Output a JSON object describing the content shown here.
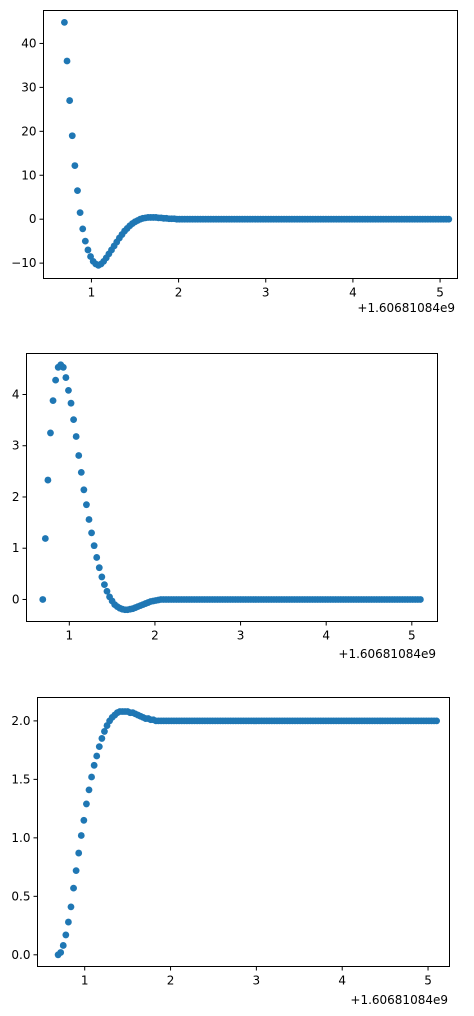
{
  "chart_data": [
    {
      "type": "scatter",
      "color": "#1f77b4",
      "grid": false,
      "x_offset_label": "+1.60681084e9",
      "xlim": [
        0.45,
        5.2
      ],
      "ylim": [
        -13.5,
        47.5
      ],
      "xticks": [
        1,
        2,
        3,
        4,
        5
      ],
      "yticks": [
        -10,
        0,
        10,
        20,
        30,
        40
      ],
      "yticklabels": [
        "−10",
        "0",
        "10",
        "20",
        "30",
        "40"
      ],
      "series": [
        {
          "x": [
            0.69,
            0.72,
            0.75,
            0.78,
            0.81,
            0.84,
            0.87,
            0.9,
            0.93,
            0.96,
            0.99,
            1.02,
            1.05,
            1.08,
            1.11,
            1.14,
            1.17,
            1.2,
            1.23,
            1.26,
            1.29,
            1.32,
            1.35,
            1.38,
            1.41,
            1.44,
            1.47,
            1.5,
            1.53,
            1.56,
            1.59,
            1.62,
            1.65,
            1.68,
            1.71,
            1.74,
            1.77,
            1.8,
            1.83,
            1.86,
            1.89,
            1.92,
            1.95,
            1.98,
            2.01,
            2.04,
            2.07,
            2.1,
            2.13,
            2.16,
            2.19,
            2.22,
            2.25,
            2.28,
            2.31,
            2.34,
            2.37,
            2.4,
            2.43,
            2.46,
            2.49,
            2.52,
            2.55,
            2.58,
            2.61,
            2.64,
            2.67,
            2.7,
            2.73,
            2.76,
            2.79,
            2.82,
            2.85,
            2.88,
            2.91,
            2.94,
            2.97,
            3.0,
            3.03,
            3.06,
            3.09,
            3.12,
            3.15,
            3.18,
            3.21,
            3.24,
            3.27,
            3.3,
            3.33,
            3.36,
            3.39,
            3.42,
            3.45,
            3.48,
            3.51,
            3.54,
            3.57,
            3.6,
            3.63,
            3.66,
            3.69,
            3.72,
            3.75,
            3.78,
            3.81,
            3.84,
            3.87,
            3.9,
            3.93,
            3.96,
            3.99,
            4.02,
            4.05,
            4.08,
            4.11,
            4.14,
            4.17,
            4.2,
            4.23,
            4.26,
            4.29,
            4.32,
            4.35,
            4.38,
            4.41,
            4.44,
            4.47,
            4.5,
            4.53,
            4.56,
            4.59,
            4.62,
            4.65,
            4.68,
            4.71,
            4.74,
            4.77,
            4.8,
            4.83,
            4.86,
            4.89,
            4.92,
            4.95,
            4.98,
            5.01,
            5.04,
            5.07,
            5.1
          ],
          "y": [
            44.8,
            36.0,
            27.0,
            19.0,
            12.2,
            6.5,
            1.5,
            -2.2,
            -5.0,
            -7.0,
            -8.5,
            -9.6,
            -10.2,
            -10.5,
            -10.2,
            -9.6,
            -8.8,
            -7.9,
            -7.0,
            -6.1,
            -5.2,
            -4.3,
            -3.5,
            -2.7,
            -2.1,
            -1.5,
            -1.0,
            -0.6,
            -0.3,
            0.0,
            0.2,
            0.3,
            0.4,
            0.4,
            0.4,
            0.4,
            0.3,
            0.3,
            0.2,
            0.2,
            0.1,
            0.1,
            0.1,
            0.0,
            0.0,
            0.0,
            0.0,
            0.0,
            0.0,
            0.0,
            0.0,
            0.0,
            0.0,
            0.0,
            0.0,
            0.0,
            0.0,
            0.0,
            0.0,
            0.0,
            0.0,
            0.0,
            0.0,
            0.0,
            0.0,
            0.0,
            0.0,
            0.0,
            0.0,
            0.0,
            0.0,
            0.0,
            0.0,
            0.0,
            0.0,
            0.0,
            0.0,
            0.0,
            0.0,
            0.0,
            0.0,
            0.0,
            0.0,
            0.0,
            0.0,
            0.0,
            0.0,
            0.0,
            0.0,
            0.0,
            0.0,
            0.0,
            0.0,
            0.0,
            0.0,
            0.0,
            0.0,
            0.0,
            0.0,
            0.0,
            0.0,
            0.0,
            0.0,
            0.0,
            0.0,
            0.0,
            0.0,
            0.0,
            0.0,
            0.0,
            0.0,
            0.0,
            0.0,
            0.0,
            0.0,
            0.0,
            0.0,
            0.0,
            0.0,
            0.0,
            0.0,
            0.0,
            0.0,
            0.0,
            0.0,
            0.0,
            0.0,
            0.0,
            0.0,
            0.0,
            0.0,
            0.0,
            0.0,
            0.0,
            0.0,
            0.0,
            0.0,
            0.0,
            0.0,
            0.0,
            0.0,
            0.0,
            0.0,
            0.0,
            0.0,
            0.0,
            0.0,
            0.0
          ]
        }
      ]
    },
    {
      "type": "scatter",
      "color": "#1f77b4",
      "grid": false,
      "x_offset_label": "+1.60681084e9",
      "xlim": [
        0.5,
        5.3
      ],
      "ylim": [
        -0.43,
        4.8
      ],
      "xticks": [
        1,
        2,
        3,
        4,
        5
      ],
      "yticks": [
        0,
        1,
        2,
        3,
        4
      ],
      "yticklabels": [
        "0",
        "1",
        "2",
        "3",
        "4"
      ],
      "series": [
        {
          "x": [
            0.69,
            0.72,
            0.75,
            0.78,
            0.81,
            0.84,
            0.87,
            0.9,
            0.93,
            0.96,
            0.99,
            1.02,
            1.05,
            1.08,
            1.11,
            1.14,
            1.17,
            1.2,
            1.23,
            1.26,
            1.29,
            1.32,
            1.35,
            1.38,
            1.41,
            1.44,
            1.47,
            1.5,
            1.53,
            1.56,
            1.59,
            1.62,
            1.65,
            1.68,
            1.71,
            1.74,
            1.77,
            1.8,
            1.83,
            1.86,
            1.89,
            1.92,
            1.95,
            1.98,
            2.01,
            2.04,
            2.07,
            2.1,
            2.13,
            2.16,
            2.19,
            2.22,
            2.25,
            2.28,
            2.31,
            2.34,
            2.37,
            2.4,
            2.43,
            2.46,
            2.49,
            2.52,
            2.55,
            2.58,
            2.61,
            2.64,
            2.67,
            2.7,
            2.73,
            2.76,
            2.79,
            2.82,
            2.85,
            2.88,
            2.91,
            2.94,
            2.97,
            3.0,
            3.03,
            3.06,
            3.09,
            3.12,
            3.15,
            3.18,
            3.21,
            3.24,
            3.27,
            3.3,
            3.33,
            3.36,
            3.39,
            3.42,
            3.45,
            3.48,
            3.51,
            3.54,
            3.57,
            3.6,
            3.63,
            3.66,
            3.69,
            3.72,
            3.75,
            3.78,
            3.81,
            3.84,
            3.87,
            3.9,
            3.93,
            3.96,
            3.99,
            4.02,
            4.05,
            4.08,
            4.11,
            4.14,
            4.17,
            4.2,
            4.23,
            4.26,
            4.29,
            4.32,
            4.35,
            4.38,
            4.41,
            4.44,
            4.47,
            4.5,
            4.53,
            4.56,
            4.59,
            4.62,
            4.65,
            4.68,
            4.71,
            4.74,
            4.77,
            4.8,
            4.83,
            4.86,
            4.89,
            4.92,
            4.95,
            4.98,
            5.01,
            5.04,
            5.07,
            5.1
          ],
          "y": [
            0.0,
            1.19,
            2.33,
            3.25,
            3.88,
            4.28,
            4.53,
            4.58,
            4.53,
            4.33,
            4.08,
            3.83,
            3.51,
            3.18,
            2.81,
            2.48,
            2.14,
            1.85,
            1.56,
            1.3,
            1.05,
            0.82,
            0.62,
            0.44,
            0.29,
            0.16,
            0.05,
            -0.03,
            -0.1,
            -0.14,
            -0.17,
            -0.19,
            -0.2,
            -0.2,
            -0.19,
            -0.18,
            -0.16,
            -0.14,
            -0.12,
            -0.1,
            -0.08,
            -0.06,
            -0.04,
            -0.03,
            -0.02,
            -0.01,
            0.0,
            0.0,
            0.0,
            0.0,
            0.0,
            0.0,
            0.0,
            0.0,
            0.0,
            0.0,
            0.0,
            0.0,
            0.0,
            0.0,
            0.0,
            0.0,
            0.0,
            0.0,
            0.0,
            0.0,
            0.0,
            0.0,
            0.0,
            0.0,
            0.0,
            0.0,
            0.0,
            0.0,
            0.0,
            0.0,
            0.0,
            0.0,
            0.0,
            0.0,
            0.0,
            0.0,
            0.0,
            0.0,
            0.0,
            0.0,
            0.0,
            0.0,
            0.0,
            0.0,
            0.0,
            0.0,
            0.0,
            0.0,
            0.0,
            0.0,
            0.0,
            0.0,
            0.0,
            0.0,
            0.0,
            0.0,
            0.0,
            0.0,
            0.0,
            0.0,
            0.0,
            0.0,
            0.0,
            0.0,
            0.0,
            0.0,
            0.0,
            0.0,
            0.0,
            0.0,
            0.0,
            0.0,
            0.0,
            0.0,
            0.0,
            0.0,
            0.0,
            0.0,
            0.0,
            0.0,
            0.0,
            0.0,
            0.0,
            0.0,
            0.0,
            0.0,
            0.0,
            0.0,
            0.0,
            0.0,
            0.0,
            0.0,
            0.0,
            0.0,
            0.0,
            0.0,
            0.0,
            0.0,
            0.0,
            0.0,
            0.0,
            0.0
          ]
        }
      ]
    },
    {
      "type": "scatter",
      "color": "#1f77b4",
      "grid": false,
      "x_offset_label": "+1.60681084e9",
      "xlim": [
        0.45,
        5.25
      ],
      "ylim": [
        -0.1,
        2.2
      ],
      "xticks": [
        1,
        2,
        3,
        4,
        5
      ],
      "yticks": [
        0.0,
        0.5,
        1.0,
        1.5,
        2.0
      ],
      "yticklabels": [
        "0.0",
        "0.5",
        "1.0",
        "1.5",
        "2.0"
      ],
      "series": [
        {
          "x": [
            0.69,
            0.72,
            0.75,
            0.78,
            0.81,
            0.84,
            0.87,
            0.9,
            0.93,
            0.96,
            0.99,
            1.02,
            1.05,
            1.08,
            1.11,
            1.14,
            1.17,
            1.2,
            1.23,
            1.26,
            1.29,
            1.32,
            1.35,
            1.38,
            1.41,
            1.44,
            1.47,
            1.5,
            1.53,
            1.56,
            1.59,
            1.62,
            1.65,
            1.68,
            1.71,
            1.74,
            1.77,
            1.8,
            1.83,
            1.86,
            1.89,
            1.92,
            1.95,
            1.98,
            2.01,
            2.04,
            2.07,
            2.1,
            2.13,
            2.16,
            2.19,
            2.22,
            2.25,
            2.28,
            2.31,
            2.34,
            2.37,
            2.4,
            2.43,
            2.46,
            2.49,
            2.52,
            2.55,
            2.58,
            2.61,
            2.64,
            2.67,
            2.7,
            2.73,
            2.76,
            2.79,
            2.82,
            2.85,
            2.88,
            2.91,
            2.94,
            2.97,
            3.0,
            3.03,
            3.06,
            3.09,
            3.12,
            3.15,
            3.18,
            3.21,
            3.24,
            3.27,
            3.3,
            3.33,
            3.36,
            3.39,
            3.42,
            3.45,
            3.48,
            3.51,
            3.54,
            3.57,
            3.6,
            3.63,
            3.66,
            3.69,
            3.72,
            3.75,
            3.78,
            3.81,
            3.84,
            3.87,
            3.9,
            3.93,
            3.96,
            3.99,
            4.02,
            4.05,
            4.08,
            4.11,
            4.14,
            4.17,
            4.2,
            4.23,
            4.26,
            4.29,
            4.32,
            4.35,
            4.38,
            4.41,
            4.44,
            4.47,
            4.5,
            4.53,
            4.56,
            4.59,
            4.62,
            4.65,
            4.68,
            4.71,
            4.74,
            4.77,
            4.8,
            4.83,
            4.86,
            4.89,
            4.92,
            4.95,
            4.98,
            5.01,
            5.04,
            5.07,
            5.1
          ],
          "y": [
            0.0,
            0.02,
            0.08,
            0.17,
            0.28,
            0.41,
            0.57,
            0.72,
            0.87,
            1.02,
            1.15,
            1.29,
            1.41,
            1.52,
            1.62,
            1.7,
            1.78,
            1.85,
            1.91,
            1.96,
            2.0,
            2.03,
            2.05,
            2.07,
            2.08,
            2.08,
            2.08,
            2.08,
            2.07,
            2.07,
            2.06,
            2.05,
            2.04,
            2.03,
            2.02,
            2.02,
            2.01,
            2.01,
            2.0,
            2.0,
            2.0,
            2.0,
            2.0,
            2.0,
            2.0,
            2.0,
            2.0,
            2.0,
            2.0,
            2.0,
            2.0,
            2.0,
            2.0,
            2.0,
            2.0,
            2.0,
            2.0,
            2.0,
            2.0,
            2.0,
            2.0,
            2.0,
            2.0,
            2.0,
            2.0,
            2.0,
            2.0,
            2.0,
            2.0,
            2.0,
            2.0,
            2.0,
            2.0,
            2.0,
            2.0,
            2.0,
            2.0,
            2.0,
            2.0,
            2.0,
            2.0,
            2.0,
            2.0,
            2.0,
            2.0,
            2.0,
            2.0,
            2.0,
            2.0,
            2.0,
            2.0,
            2.0,
            2.0,
            2.0,
            2.0,
            2.0,
            2.0,
            2.0,
            2.0,
            2.0,
            2.0,
            2.0,
            2.0,
            2.0,
            2.0,
            2.0,
            2.0,
            2.0,
            2.0,
            2.0,
            2.0,
            2.0,
            2.0,
            2.0,
            2.0,
            2.0,
            2.0,
            2.0,
            2.0,
            2.0,
            2.0,
            2.0,
            2.0,
            2.0,
            2.0,
            2.0,
            2.0,
            2.0,
            2.0,
            2.0,
            2.0,
            2.0,
            2.0,
            2.0,
            2.0,
            2.0,
            2.0,
            2.0,
            2.0,
            2.0,
            2.0,
            2.0,
            2.0,
            2.0,
            2.0,
            2.0,
            2.0,
            2.0
          ]
        }
      ]
    }
  ]
}
